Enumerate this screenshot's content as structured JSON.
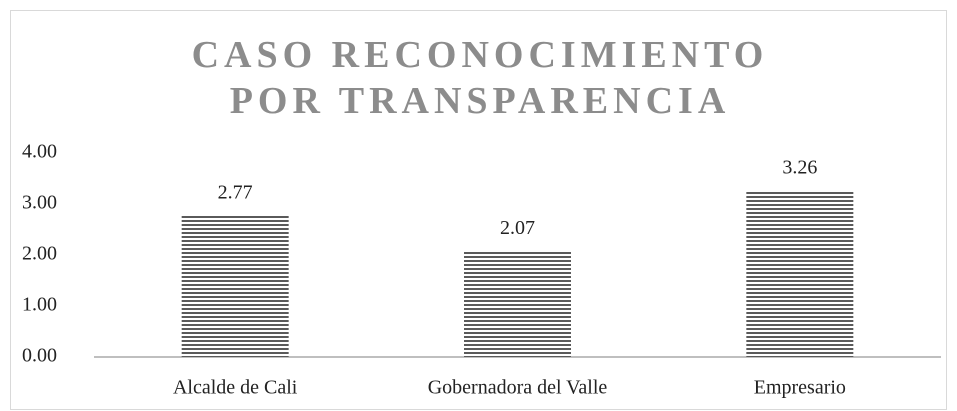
{
  "chart_data": {
    "type": "bar",
    "title": "CASO RECONOCIMIENTO POR TRANSPARENCIA",
    "categories": [
      "Alcalde de Cali",
      "Gobernadora del Valle",
      "Empresario"
    ],
    "values": [
      2.77,
      2.07,
      3.26
    ],
    "color": "#5a5a5a",
    "ylim": [
      0,
      4
    ],
    "yticks": [
      {
        "value": 0,
        "label": "0.00"
      },
      {
        "value": 1,
        "label": "1.00"
      },
      {
        "value": 2,
        "label": "2.00"
      },
      {
        "value": 3,
        "label": "3.00"
      },
      {
        "value": 4,
        "label": "4.00"
      }
    ],
    "grid": false
  }
}
